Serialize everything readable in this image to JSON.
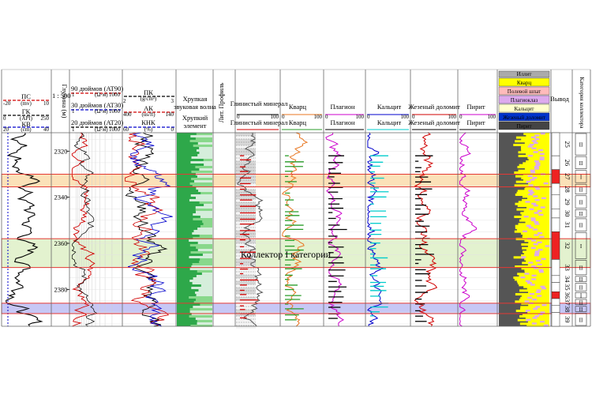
{
  "chart_data": {
    "type": "well-log",
    "depth_axis": {
      "label": "Глубина (м)",
      "scale": "1 : 500",
      "ticks": [
        2320,
        2340,
        2360,
        2380
      ],
      "range": [
        2312,
        2396
      ]
    },
    "track1_headers": {
      "ps": {
        "label": "ПС",
        "unit": "(mv)",
        "min": "-20",
        "max": "10",
        "color": "#d00000"
      },
      "gk": {
        "label": "ГК",
        "unit": "(API)",
        "min": "0",
        "max": "250",
        "color": "#000000"
      },
      "kv": {
        "label": "КВ",
        "unit": "(cm)",
        "min": "20",
        "max": "40",
        "color": "#0000cc"
      }
    },
    "resistivity_headers": [
      {
        "label": "90 дюймов (AT90)",
        "unit": "(Ω·м)",
        "min": "1",
        "max": "1000",
        "color": "#d00000"
      },
      {
        "label": "30 дюймов (AT30)",
        "unit": "(Ω·м)",
        "min": "1",
        "max": "1000",
        "color": "#0000cc"
      },
      {
        "label": "20 дюймов (AT20)",
        "unit": "(Ω·м)",
        "min": "1",
        "max": "1000",
        "color": "#000000"
      }
    ],
    "porosity_headers": {
      "pk": {
        "label": "ПК",
        "unit": "(g/cm³)",
        "min": "2",
        "max": "3",
        "color": "#000000"
      },
      "ak": {
        "label": "АК",
        "unit": "(us/ft)",
        "min": "400",
        "max": "140",
        "color": "#d00000"
      },
      "knk": {
        "label": "КНК",
        "unit": "(%)",
        "min": "60",
        "max": "0",
        "color": "#0000cc"
      }
    },
    "brittleness_headers": {
      "line1": "Хрупкая",
      "line2": "звуковая волна",
      "line3": "Хрупкий",
      "line4": "элемент"
    },
    "profile_header": "Лит. Профиль",
    "mineral_tracks": [
      {
        "label": "Глинистый минерал",
        "min": "0",
        "max": "100",
        "color": "#000000",
        "color2": "#d00000"
      },
      {
        "label": "Кварц",
        "min": "0",
        "max": "100",
        "color": "#e87722",
        "color2": "#2a9d2a"
      },
      {
        "label": "Плагион",
        "min": "0",
        "max": "100",
        "color": "#cc00cc",
        "color2": "#000000"
      },
      {
        "label": "Кальцит",
        "min": "0",
        "max": "100",
        "color": "#0000cc",
        "color2": "#00cccc"
      },
      {
        "label": "Жезеный доломит",
        "min": "0",
        "max": "100",
        "color": "#d00000",
        "color2": "#000000"
      },
      {
        "label": "Пирит",
        "min": "0",
        "max": "100",
        "color": "#cc00cc",
        "color2": "#000000"
      }
    ],
    "lithology_legend": [
      "Иллит",
      "Кварц",
      "Полевой шпат",
      "Плагиоклаз",
      "Кальцит",
      "Жезеный доломит",
      "Пирит"
    ],
    "lithology_colors": [
      "#aaaaaa",
      "#ffff00",
      "#ffbbbb",
      "#ddaaee",
      "#ffffcc",
      "#0033cc",
      "#444444"
    ],
    "layer_header": "Вывод",
    "category_header": "Категория коллектора",
    "layer_numbers": [
      "25",
      "26",
      "27",
      "28",
      "29",
      "30",
      "31",
      "32",
      "33",
      "34",
      "35",
      "36",
      "37",
      "38",
      "39"
    ],
    "layer_depths": [
      [
        2312,
        2322
      ],
      [
        2322,
        2328
      ],
      [
        2328,
        2334
      ],
      [
        2334,
        2339
      ],
      [
        2339,
        2345
      ],
      [
        2345,
        2349
      ],
      [
        2349,
        2355
      ],
      [
        2355,
        2367
      ],
      [
        2367,
        2374
      ],
      [
        2374,
        2377
      ],
      [
        2377,
        2381
      ],
      [
        2381,
        2384
      ],
      [
        2384,
        2387
      ],
      [
        2387,
        2390
      ],
      [
        2390,
        2396
      ]
    ],
    "categories": [
      "II",
      "II",
      "I",
      "II",
      "II",
      "II",
      "II",
      "I",
      "II",
      "II",
      "II",
      "I",
      "II",
      "II",
      "II"
    ],
    "highlight_bands": [
      {
        "from": 2330,
        "to": 2335.5,
        "fill": "#fbe1b8",
        "stroke": "#e53935"
      },
      {
        "from": 2358,
        "to": 2370.5,
        "fill": "#e3f2cf",
        "stroke": "#e53935"
      },
      {
        "from": 2386,
        "to": 2390.5,
        "fill": "#c7c7f5",
        "stroke": "#e53935"
      }
    ],
    "annotation": "Коллектор I категории"
  }
}
